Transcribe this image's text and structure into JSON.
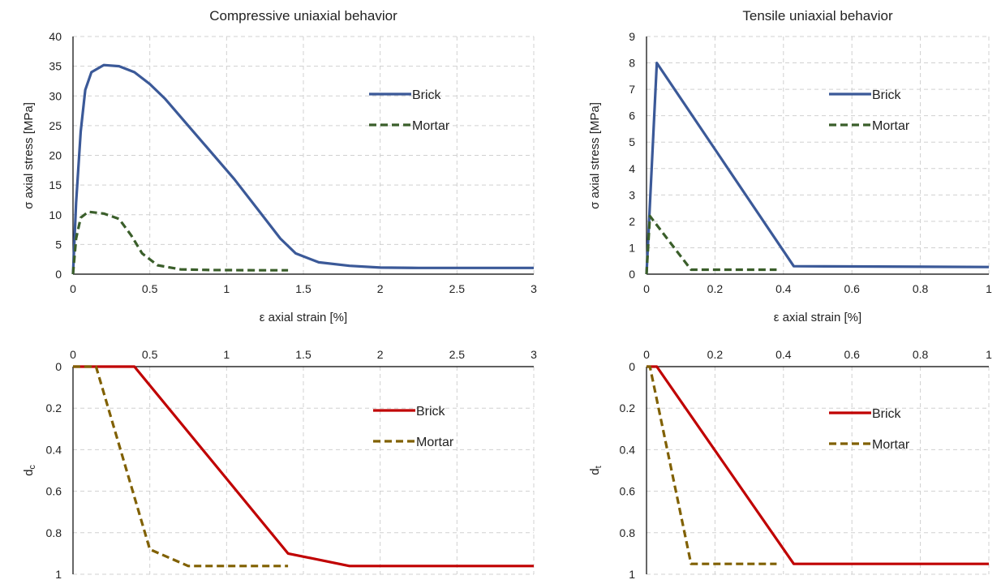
{
  "chart_data": [
    {
      "id": "compressive",
      "type": "line",
      "title": "Compressive uniaxial behavior",
      "xlabel": "ε axial strain [%]",
      "ylabel": "σ axial stress [MPa]",
      "xlim": [
        0,
        3
      ],
      "ylim": [
        0,
        40
      ],
      "xticks": [
        "0",
        "0.5",
        "1",
        "1.5",
        "2",
        "2.5",
        "3"
      ],
      "yticks": [
        "0",
        "5",
        "10",
        "15",
        "20",
        "25",
        "30",
        "35",
        "40"
      ],
      "grid": true,
      "legend_position": "top-right",
      "series": [
        {
          "name": "Brick",
          "color": "#3b5998",
          "dash": "solid",
          "x": [
            0,
            0.02,
            0.05,
            0.08,
            0.12,
            0.2,
            0.3,
            0.4,
            0.5,
            0.6,
            0.75,
            0.9,
            1.05,
            1.2,
            1.35,
            1.45,
            1.6,
            1.8,
            2.0,
            2.25,
            2.5,
            3.0
          ],
          "y": [
            0,
            12,
            24,
            31,
            34,
            35.2,
            35,
            34,
            32,
            29.5,
            25,
            20.5,
            16,
            11,
            6,
            3.5,
            2,
            1.4,
            1.1,
            1.05,
            1.05,
            1.05
          ]
        },
        {
          "name": "Mortar",
          "color": "#3a5e2a",
          "dash": "dashed",
          "x": [
            0,
            0.02,
            0.05,
            0.1,
            0.2,
            0.3,
            0.38,
            0.45,
            0.55,
            0.7,
            0.9,
            1.2,
            1.4
          ],
          "y": [
            0,
            6,
            9.5,
            10.5,
            10.2,
            9.3,
            6.5,
            3.5,
            1.5,
            0.8,
            0.7,
            0.65,
            0.65
          ]
        }
      ]
    },
    {
      "id": "tensile",
      "type": "line",
      "title": "Tensile uniaxial behavior",
      "xlabel": "ε axial strain [%]",
      "ylabel": "σ axial stress [MPa]",
      "xlim": [
        0,
        1
      ],
      "ylim": [
        0,
        9
      ],
      "xticks": [
        "0",
        "0.2",
        "0.4",
        "0.6",
        "0.8",
        "1"
      ],
      "yticks": [
        "0",
        "1",
        "2",
        "3",
        "4",
        "5",
        "6",
        "7",
        "8",
        "9"
      ],
      "grid": true,
      "legend_position": "top-right",
      "series": [
        {
          "name": "Brick",
          "color": "#3b5998",
          "dash": "solid",
          "x": [
            0,
            0.03,
            0.43,
            1.0
          ],
          "y": [
            0,
            8,
            0.3,
            0.27
          ]
        },
        {
          "name": "Mortar",
          "color": "#3a5e2a",
          "dash": "dashed",
          "x": [
            0,
            0.01,
            0.13,
            0.38
          ],
          "y": [
            0,
            2.2,
            0.17,
            0.17
          ]
        }
      ]
    },
    {
      "id": "damage-compressive",
      "type": "line",
      "title": "",
      "xlabel": "",
      "ylabel": "dc",
      "ylabel_main": "d",
      "ylabel_sub": "c",
      "xlim": [
        0,
        3
      ],
      "ylim": [
        0,
        1
      ],
      "y_inverted": true,
      "x_axis_top": true,
      "xticks": [
        "0",
        "0.5",
        "1",
        "1.5",
        "2",
        "2.5",
        "3"
      ],
      "yticks": [
        "0",
        "0.2",
        "0.4",
        "0.6",
        "0.8",
        "1"
      ],
      "grid": true,
      "legend_position": "top-right",
      "series": [
        {
          "name": "Brick",
          "color": "#c00000",
          "dash": "solid",
          "x": [
            0,
            0.4,
            1.4,
            1.8,
            3.0
          ],
          "y": [
            0,
            0,
            0.9,
            0.96,
            0.96
          ]
        },
        {
          "name": "Mortar",
          "color": "#806000",
          "dash": "dashed",
          "x": [
            0,
            0.15,
            0.5,
            0.75,
            1.4
          ],
          "y": [
            0,
            0,
            0.88,
            0.96,
            0.96
          ]
        }
      ]
    },
    {
      "id": "damage-tensile",
      "type": "line",
      "title": "",
      "xlabel": "",
      "ylabel": "dt",
      "ylabel_main": "d",
      "ylabel_sub": "t",
      "xlim": [
        0,
        1
      ],
      "ylim": [
        0,
        1
      ],
      "y_inverted": true,
      "x_axis_top": true,
      "xticks": [
        "0",
        "0.2",
        "0.4",
        "0.6",
        "0.8",
        "1"
      ],
      "yticks": [
        "0",
        "0.2",
        "0.4",
        "0.6",
        "0.8",
        "1"
      ],
      "grid": true,
      "legend_position": "top-right",
      "series": [
        {
          "name": "Brick",
          "color": "#c00000",
          "dash": "solid",
          "x": [
            0,
            0.03,
            0.43,
            1.0
          ],
          "y": [
            0,
            0,
            0.95,
            0.95
          ]
        },
        {
          "name": "Mortar",
          "color": "#806000",
          "dash": "dashed",
          "x": [
            0,
            0.01,
            0.13,
            0.38
          ],
          "y": [
            0,
            0,
            0.95,
            0.95
          ]
        }
      ]
    }
  ]
}
